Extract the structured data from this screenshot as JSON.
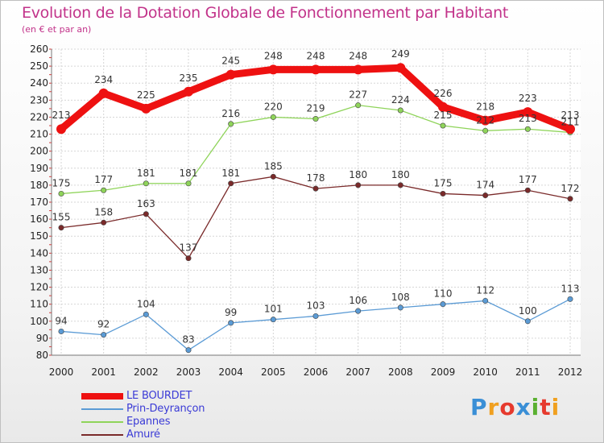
{
  "title": "Evolution de la Dotation Globale de Fonctionnement par Habitant",
  "subtitle": "(en € et par an)",
  "logo": {
    "text": "Proxiti",
    "letters": [
      {
        "ch": "P",
        "color": "#3a8fd6"
      },
      {
        "ch": "r",
        "color": "#f0a020"
      },
      {
        "ch": "o",
        "color": "#e63a2e"
      },
      {
        "ch": "x",
        "color": "#3a8fd6"
      },
      {
        "ch": "i",
        "color": "#5ab030"
      },
      {
        "ch": "t",
        "color": "#e63a2e"
      },
      {
        "ch": "i",
        "color": "#f0a020"
      }
    ]
  },
  "chart_data": {
    "type": "line",
    "title": "Evolution de la Dotation Globale de Fonctionnement par Habitant",
    "subtitle": "(en € et par an)",
    "xlabel": "",
    "ylabel": "",
    "x": [
      "2000",
      "2001",
      "2002",
      "2003",
      "2004",
      "2005",
      "2006",
      "2007",
      "2008",
      "2009",
      "2010",
      "2011",
      "2012"
    ],
    "ylim": [
      80,
      260
    ],
    "yticks": [
      80,
      90,
      100,
      110,
      120,
      130,
      140,
      150,
      160,
      170,
      180,
      190,
      200,
      210,
      220,
      230,
      240,
      250,
      260
    ],
    "grid": true,
    "legend_position": "bottom-left",
    "series": [
      {
        "name": "LE BOURDET",
        "color": "#ee1111",
        "emphasis": true,
        "values": [
          213,
          234,
          225,
          235,
          245,
          248,
          248,
          248,
          249,
          226,
          218,
          223,
          213
        ]
      },
      {
        "name": "Prin-Deyrançon",
        "color": "#5b9bd5",
        "emphasis": false,
        "values": [
          94,
          92,
          104,
          83,
          99,
          101,
          103,
          106,
          108,
          110,
          112,
          100,
          113
        ]
      },
      {
        "name": "Epannes",
        "color": "#8fd45a",
        "emphasis": false,
        "values": [
          175,
          177,
          181,
          181,
          216,
          220,
          219,
          227,
          224,
          215,
          212,
          213,
          211
        ]
      },
      {
        "name": "Amuré",
        "color": "#7a2a2a",
        "emphasis": false,
        "values": [
          155,
          158,
          163,
          137,
          181,
          185,
          178,
          180,
          180,
          175,
          174,
          177,
          172
        ]
      }
    ]
  }
}
